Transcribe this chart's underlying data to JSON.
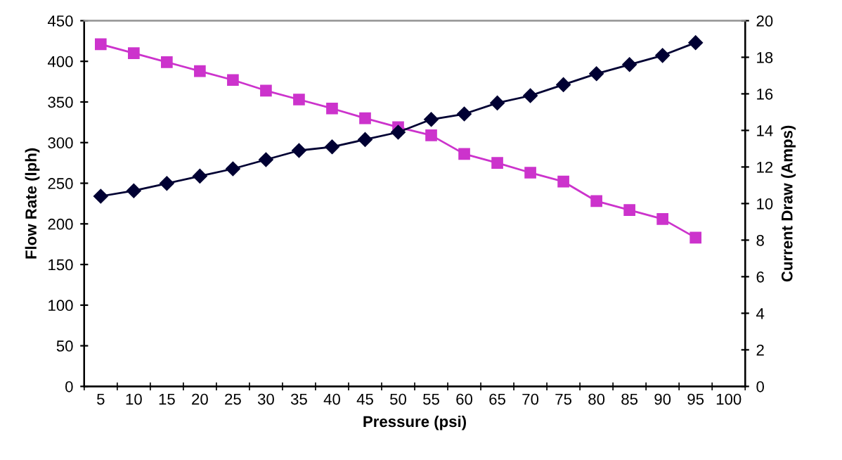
{
  "chart_data": {
    "type": "line",
    "xlabel": "Pressure (psi)",
    "ylabel": "Flow Rate (lph)",
    "y2label": "Current Draw (Amps)",
    "categories": [
      "5",
      "10",
      "15",
      "20",
      "25",
      "30",
      "35",
      "40",
      "45",
      "50",
      "55",
      "60",
      "65",
      "70",
      "75",
      "80",
      "85",
      "90",
      "95",
      "100"
    ],
    "ylim": [
      0,
      450
    ],
    "yticks": [
      0,
      50,
      100,
      150,
      200,
      250,
      300,
      350,
      400,
      450
    ],
    "y2lim": [
      0,
      20
    ],
    "y2ticks": [
      0,
      2,
      4,
      6,
      8,
      10,
      12,
      14,
      16,
      18,
      20
    ],
    "grid": false,
    "legend": false,
    "series": [
      {
        "color": "#cc33cc",
        "marker": "square",
        "values": [
          421,
          410,
          399,
          388,
          377,
          364,
          353,
          342,
          330,
          319,
          309,
          286,
          275,
          263,
          252,
          228,
          217,
          206,
          183,
          null
        ]
      },
      {
        "color": "#000033",
        "marker": "diamond",
        "axis": "y2",
        "values": [
          10.4,
          10.7,
          11.1,
          11.5,
          11.9,
          12.4,
          12.9,
          13.1,
          13.5,
          13.9,
          14.6,
          14.9,
          15.5,
          15.9,
          16.5,
          17.1,
          17.6,
          18.1,
          18.8,
          null
        ]
      }
    ]
  }
}
